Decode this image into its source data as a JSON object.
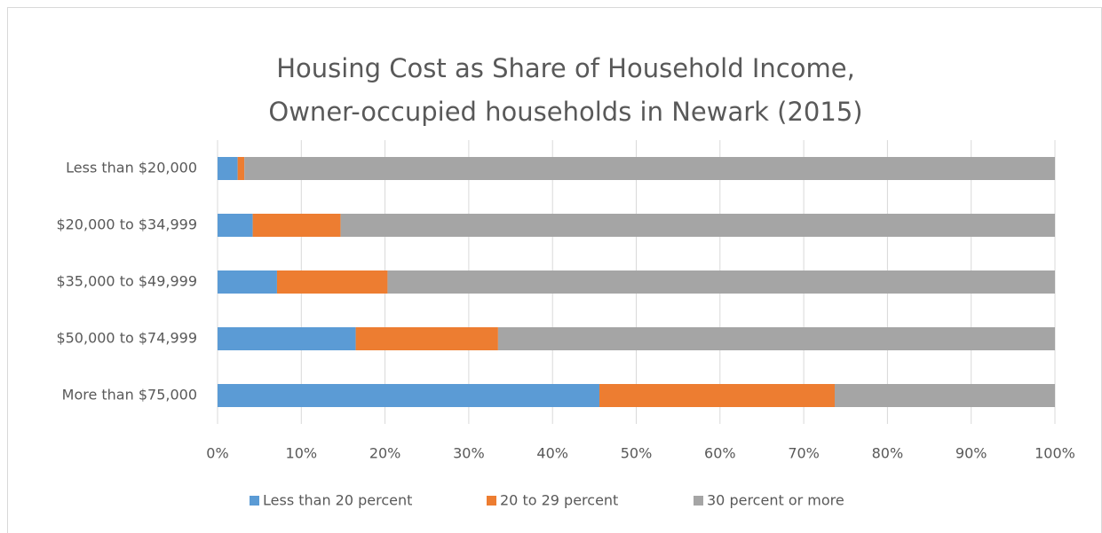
{
  "chart_data": {
    "type": "stacked_bar_horizontal",
    "title": [
      "Housing Cost as Share of Household Income,",
      "Owner-occupied households in Newark (2015)"
    ],
    "categories": [
      "Less than $20,000",
      "$20,000 to $34,999",
      "$35,000 to $49,999",
      "$50,000 to $74,999",
      "More than $75,000"
    ],
    "series": [
      {
        "name": "Less than 20 percent",
        "color": "#5b9bd5",
        "values": [
          2.4,
          4.2,
          7.1,
          16.5,
          45.6
        ]
      },
      {
        "name": "20 to 29 percent",
        "color": "#ed7d31",
        "values": [
          0.8,
          10.5,
          13.2,
          17.0,
          28.1
        ]
      },
      {
        "name": "30 percent or more",
        "color": "#a5a5a5",
        "values": [
          96.8,
          85.3,
          79.7,
          66.5,
          26.3
        ]
      }
    ],
    "xlim": [
      0,
      100
    ],
    "xticks": [
      {
        "value": 0,
        "label": "0%"
      },
      {
        "value": 10,
        "label": "10%"
      },
      {
        "value": 20,
        "label": "20%"
      },
      {
        "value": 30,
        "label": "30%"
      },
      {
        "value": 40,
        "label": "40%"
      },
      {
        "value": 50,
        "label": "50%"
      },
      {
        "value": 60,
        "label": "60%"
      },
      {
        "value": 70,
        "label": "70%"
      },
      {
        "value": 80,
        "label": "80%"
      },
      {
        "value": 90,
        "label": "90%"
      },
      {
        "value": 100,
        "label": "100%"
      }
    ],
    "grid": true,
    "legend": "bottom"
  }
}
